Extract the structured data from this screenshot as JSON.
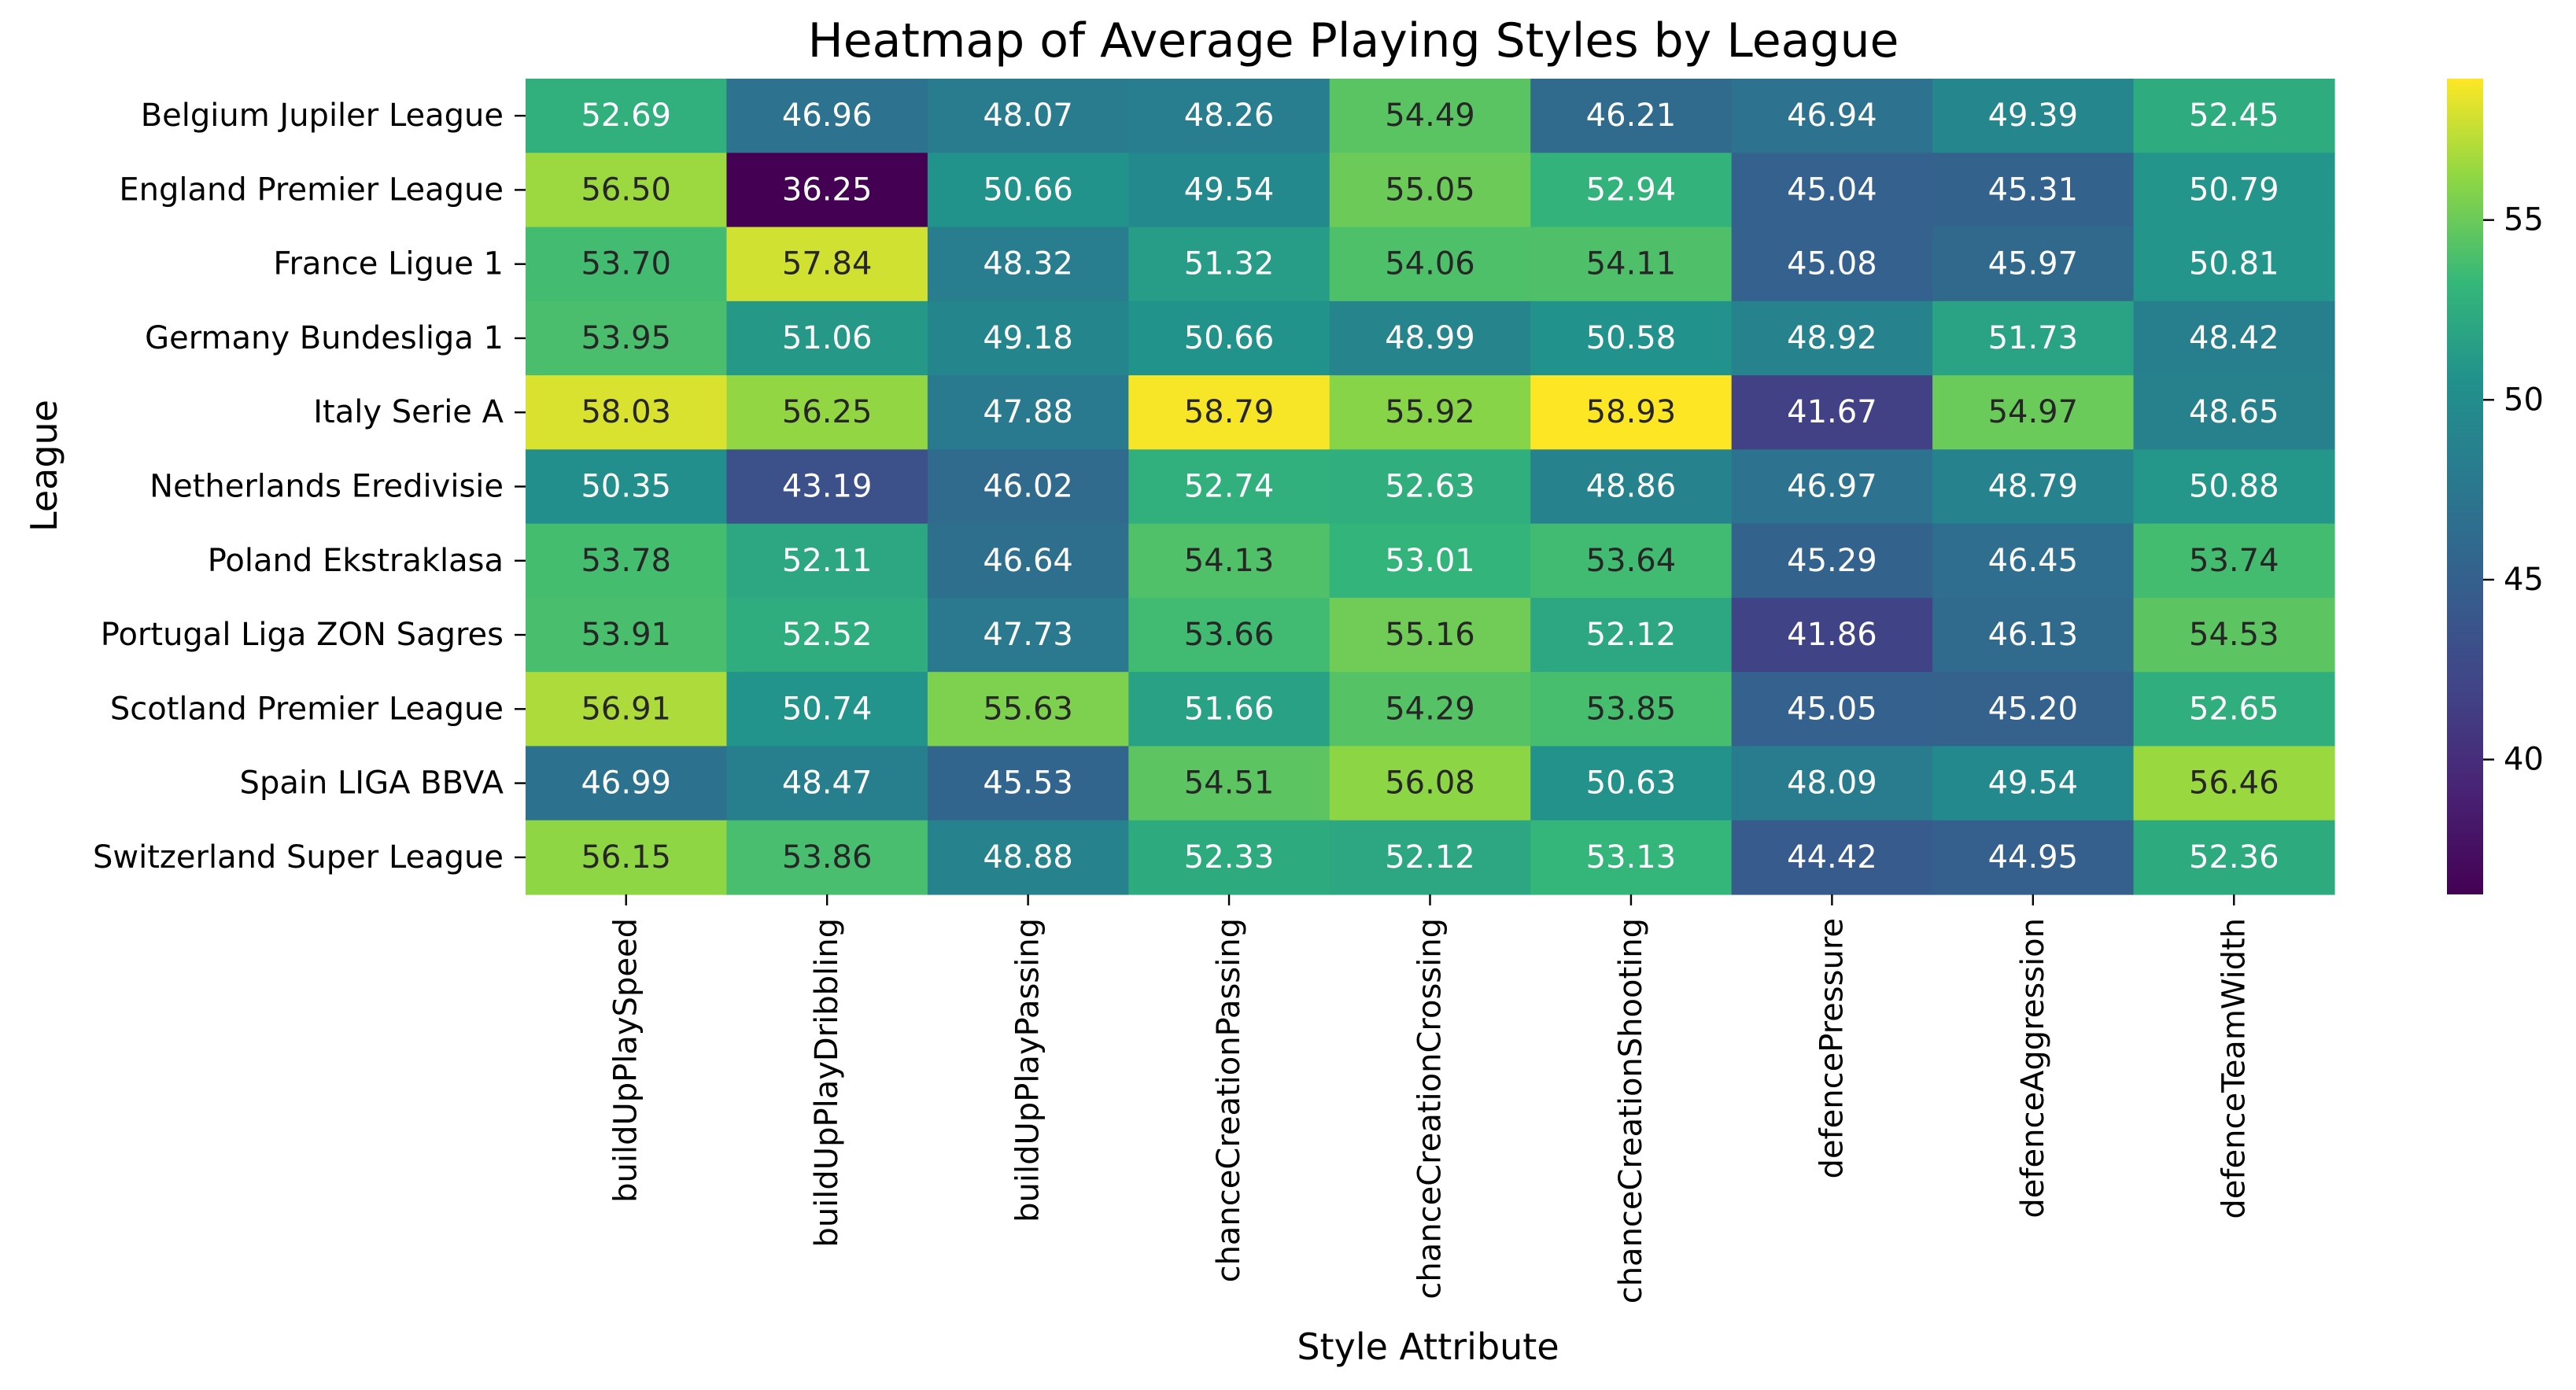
{
  "chart_data": {
    "type": "heatmap",
    "title": "Heatmap of Average Playing Styles by League",
    "xlabel": "Style Attribute",
    "ylabel": "League",
    "colormap": "viridis",
    "vmin": 36.25,
    "vmax": 58.93,
    "colorbar_ticks": [
      40,
      45,
      50,
      55
    ],
    "columns": [
      "buildUpPlaySpeed",
      "buildUpPlayDribbling",
      "buildUpPlayPassing",
      "chanceCreationPassing",
      "chanceCreationCrossing",
      "chanceCreationShooting",
      "defencePressure",
      "defenceAggression",
      "defenceTeamWidth"
    ],
    "rows": [
      "Belgium Jupiler League",
      "England Premier League",
      "France Ligue 1",
      "Germany Bundesliga 1",
      "Italy Serie A",
      "Netherlands Eredivisie",
      "Poland Ekstraklasa",
      "Portugal Liga ZON Sagres",
      "Scotland Premier League",
      "Spain LIGA BBVA",
      "Switzerland Super League"
    ],
    "values": [
      [
        52.69,
        46.96,
        48.07,
        48.26,
        54.49,
        46.21,
        46.94,
        49.39,
        52.45
      ],
      [
        56.5,
        36.25,
        50.66,
        49.54,
        55.05,
        52.94,
        45.04,
        45.31,
        50.79
      ],
      [
        53.7,
        57.84,
        48.32,
        51.32,
        54.06,
        54.11,
        45.08,
        45.97,
        50.81
      ],
      [
        53.95,
        51.06,
        49.18,
        50.66,
        48.99,
        50.58,
        48.92,
        51.73,
        48.42
      ],
      [
        58.03,
        56.25,
        47.88,
        58.79,
        55.92,
        58.93,
        41.67,
        54.97,
        48.65
      ],
      [
        50.35,
        43.19,
        46.02,
        52.74,
        52.63,
        48.86,
        46.97,
        48.79,
        50.88
      ],
      [
        53.78,
        52.11,
        46.64,
        54.13,
        53.01,
        53.64,
        45.29,
        46.45,
        53.74
      ],
      [
        53.91,
        52.52,
        47.73,
        53.66,
        55.16,
        52.12,
        41.86,
        46.13,
        54.53
      ],
      [
        56.91,
        50.74,
        55.63,
        51.66,
        54.29,
        53.85,
        45.05,
        45.2,
        52.65
      ],
      [
        46.99,
        48.47,
        45.53,
        54.51,
        56.08,
        50.63,
        48.09,
        49.54,
        56.46
      ],
      [
        56.15,
        53.86,
        48.88,
        52.33,
        52.12,
        53.13,
        44.42,
        44.95,
        52.36
      ]
    ]
  }
}
